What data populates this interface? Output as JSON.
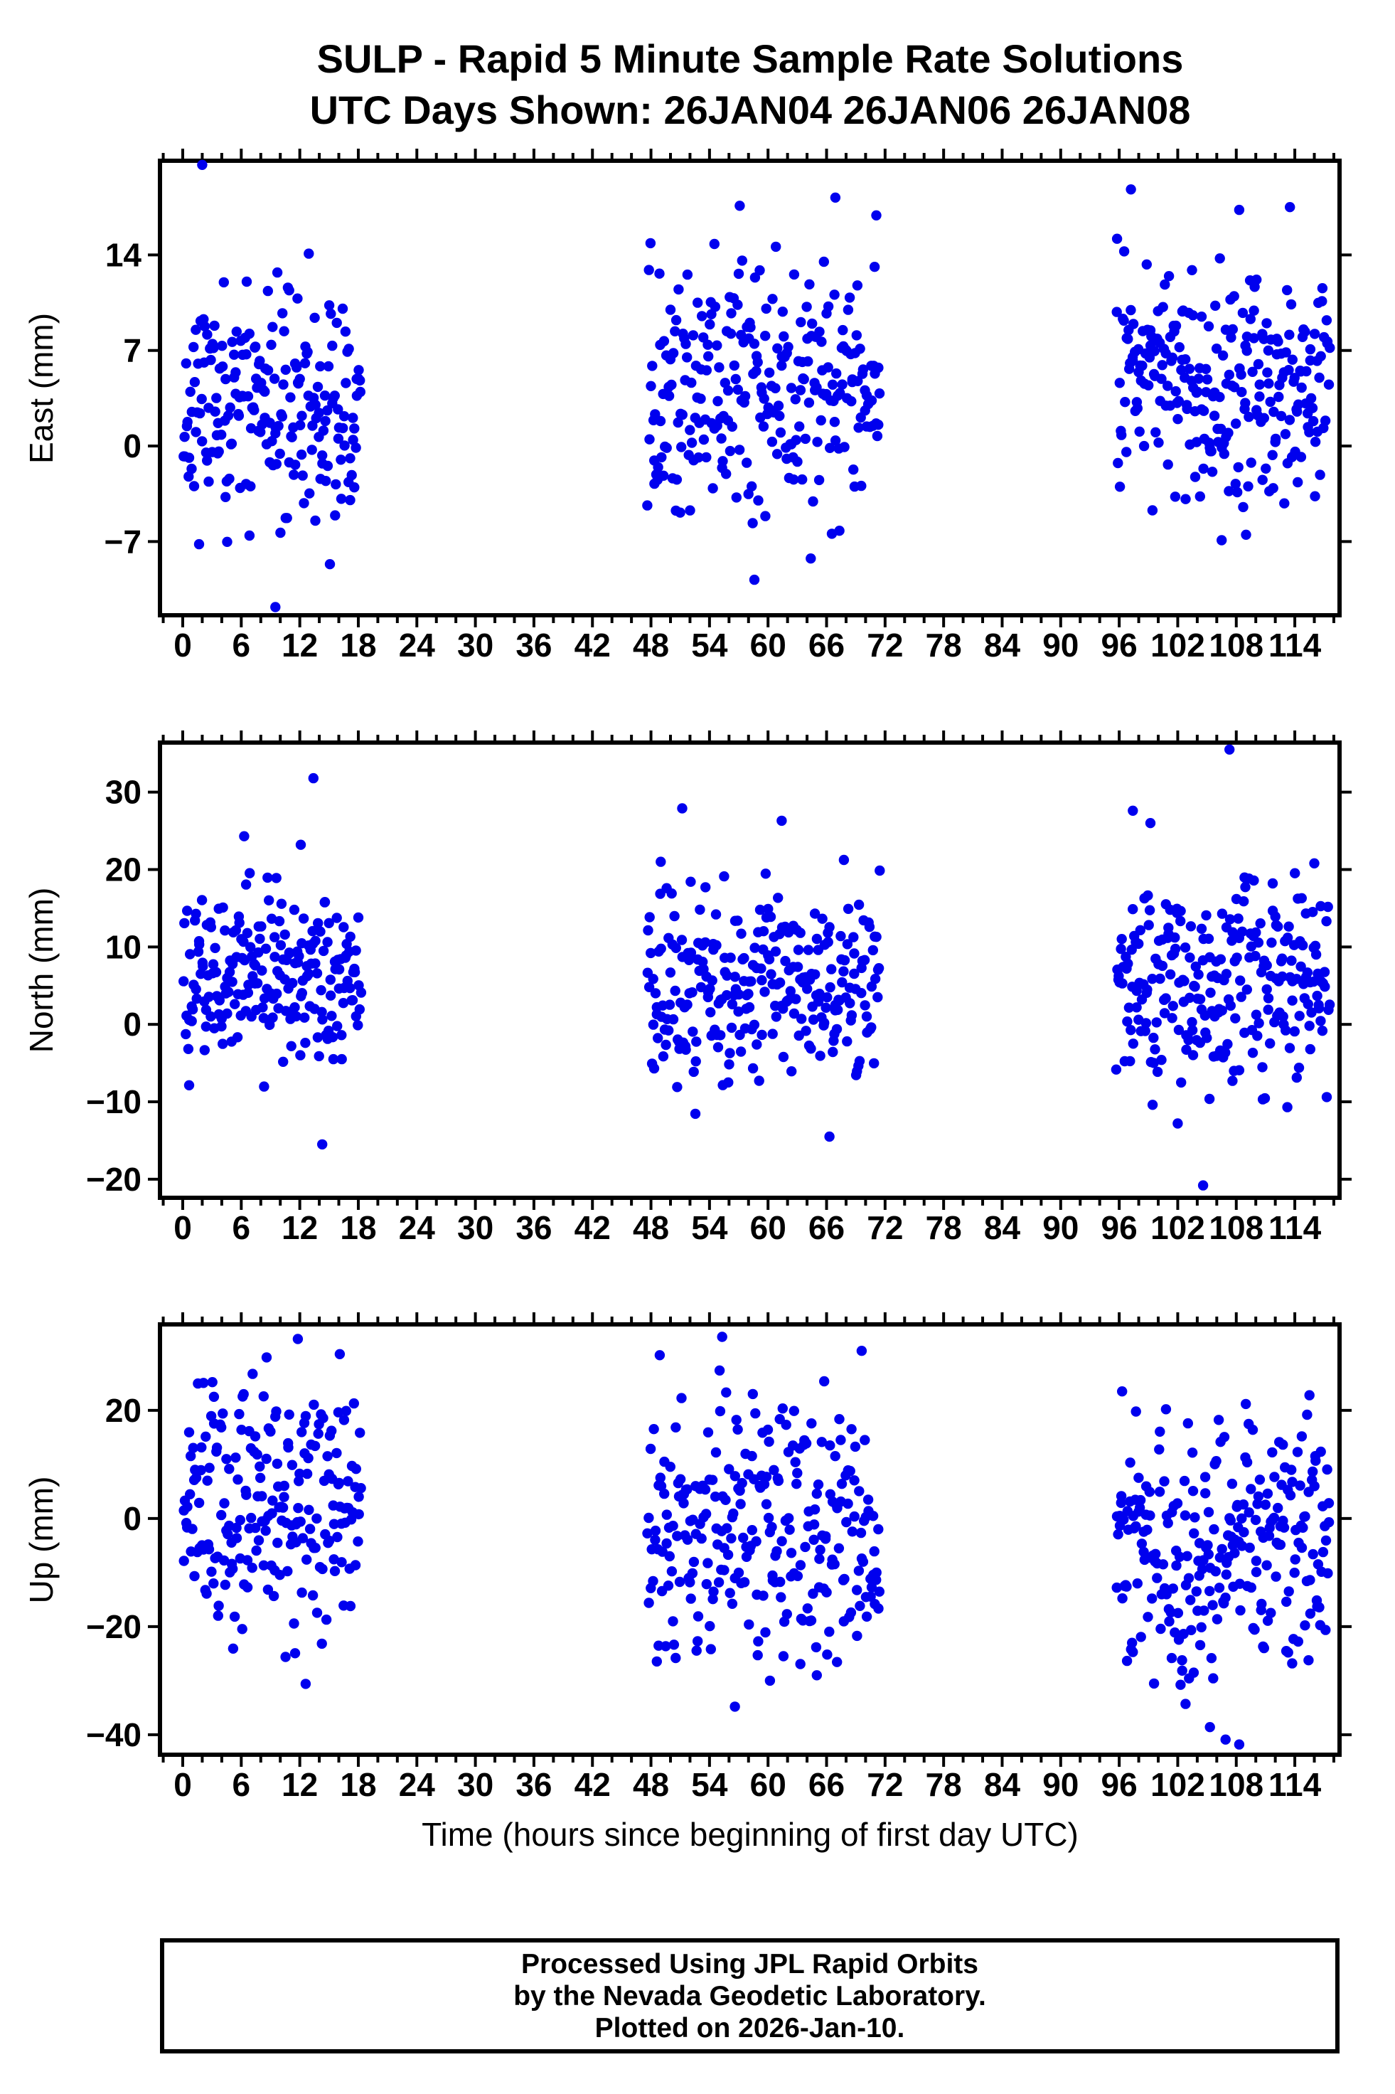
{
  "title": "SULP - Rapid 5 Minute Sample Rate Solutions",
  "subtitle": "UTC Days Shown:  26JAN04 26JAN06 26JAN08",
  "point_color": "#0000ee",
  "frame_color": "#000000",
  "x_axis": {
    "label": "Time (hours since beginning of first day UTC)",
    "major_ticks": [
      0,
      6,
      12,
      18,
      24,
      30,
      36,
      42,
      48,
      54,
      60,
      66,
      72,
      78,
      84,
      90,
      96,
      102,
      108,
      114
    ],
    "minor_tick_step": 2,
    "domain": [
      -2.33,
      118.6
    ]
  },
  "footer": {
    "lines": [
      "Processed Using JPL Rapid Orbits",
      "by the Nevada Geodetic Laboratory.",
      "Plotted on 2026-Jan-10."
    ]
  },
  "chart_data": [
    {
      "type": "scatter",
      "ylabel": "East (mm)",
      "yticks": [
        14,
        7,
        0,
        -7
      ],
      "ylim": [
        -12.4,
        20.9
      ],
      "legend": "none",
      "grid": false,
      "clusters": [
        {
          "x_range": [
            0.05,
            18.3
          ],
          "n": 210,
          "mean": 3.1,
          "sd": 4.4,
          "y_clamp": [
            -9.7,
            14.8
          ],
          "seed": 11
        },
        {
          "x_range": [
            47.6,
            71.5
          ],
          "n": 260,
          "mean": 4.4,
          "sd": 4.4,
          "y_clamp": [
            -9.3,
            15.4
          ],
          "seed": 12
        },
        {
          "x_range": [
            95.7,
            117.6
          ],
          "n": 250,
          "mean": 4.4,
          "sd": 4.2,
          "y_clamp": [
            -6.8,
            15.2
          ],
          "seed": 13
        }
      ],
      "extra_points": [
        [
          2.0,
          20.6
        ],
        [
          9.5,
          -11.8
        ],
        [
          57.1,
          17.6
        ],
        [
          66.9,
          18.2
        ],
        [
          71.1,
          16.9
        ],
        [
          58.6,
          -9.8
        ],
        [
          97.2,
          18.8
        ],
        [
          108.3,
          17.3
        ],
        [
          113.5,
          17.5
        ],
        [
          106.5,
          -6.9
        ],
        [
          109.0,
          -6.5
        ]
      ]
    },
    {
      "type": "scatter",
      "ylabel": "North (mm)",
      "yticks": [
        30,
        20,
        10,
        0,
        -10,
        -20
      ],
      "ylim": [
        -22.4,
        36.4
      ],
      "legend": "none",
      "grid": false,
      "clusters": [
        {
          "x_range": [
            0.05,
            18.3
          ],
          "n": 210,
          "mean": 7.2,
          "sd": 6.2,
          "y_clamp": [
            -9.5,
            20.0
          ],
          "seed": 21
        },
        {
          "x_range": [
            47.6,
            71.5
          ],
          "n": 260,
          "mean": 5.0,
          "sd": 6.3,
          "y_clamp": [
            -12.2,
            21.5
          ],
          "seed": 22
        },
        {
          "x_range": [
            95.7,
            117.6
          ],
          "n": 250,
          "mean": 4.8,
          "sd": 6.8,
          "y_clamp": [
            -13.2,
            21.0
          ],
          "seed": 23
        }
      ],
      "extra_points": [
        [
          13.4,
          31.8
        ],
        [
          6.3,
          24.3
        ],
        [
          12.1,
          23.2
        ],
        [
          14.3,
          -15.5
        ],
        [
          51.2,
          27.9
        ],
        [
          61.4,
          26.3
        ],
        [
          49.0,
          21.0
        ],
        [
          66.3,
          -14.5
        ],
        [
          107.3,
          35.5
        ],
        [
          97.4,
          27.6
        ],
        [
          99.2,
          26.0
        ],
        [
          116.0,
          20.8
        ],
        [
          104.6,
          -20.8
        ],
        [
          102.0,
          -12.8
        ]
      ]
    },
    {
      "type": "scatter",
      "ylabel": "Up (mm)",
      "yticks": [
        20,
        0,
        -20,
        -40
      ],
      "ylim": [
        -43.7,
        35.9
      ],
      "legend": "none",
      "grid": false,
      "clusters": [
        {
          "x_range": [
            0.05,
            18.3
          ],
          "n": 210,
          "mean": 1.5,
          "sd": 12.5,
          "y_clamp": [
            -26.0,
            27.0
          ],
          "seed": 31
        },
        {
          "x_range": [
            47.6,
            71.5
          ],
          "n": 260,
          "mean": -2.5,
          "sd": 12.5,
          "y_clamp": [
            -28.0,
            28.0
          ],
          "seed": 32
        },
        {
          "x_range": [
            95.7,
            117.6
          ],
          "n": 250,
          "mean": -6.0,
          "sd": 12.0,
          "y_clamp": [
            -32.0,
            27.0
          ],
          "seed": 33
        }
      ],
      "extra_points": [
        [
          11.8,
          33.2
        ],
        [
          8.6,
          29.8
        ],
        [
          16.1,
          30.4
        ],
        [
          3.2,
          22.5
        ],
        [
          12.6,
          -30.6
        ],
        [
          55.3,
          33.6
        ],
        [
          48.9,
          30.2
        ],
        [
          69.6,
          31.0
        ],
        [
          56.6,
          -34.8
        ],
        [
          60.2,
          -30.0
        ],
        [
          65.0,
          -29.0
        ],
        [
          102.8,
          -34.3
        ],
        [
          105.3,
          -38.6
        ],
        [
          106.9,
          -40.9
        ],
        [
          108.3,
          -41.8
        ],
        [
          97.4,
          -24.7
        ],
        [
          115.5,
          22.8
        ],
        [
          96.3,
          23.5
        ]
      ]
    }
  ]
}
